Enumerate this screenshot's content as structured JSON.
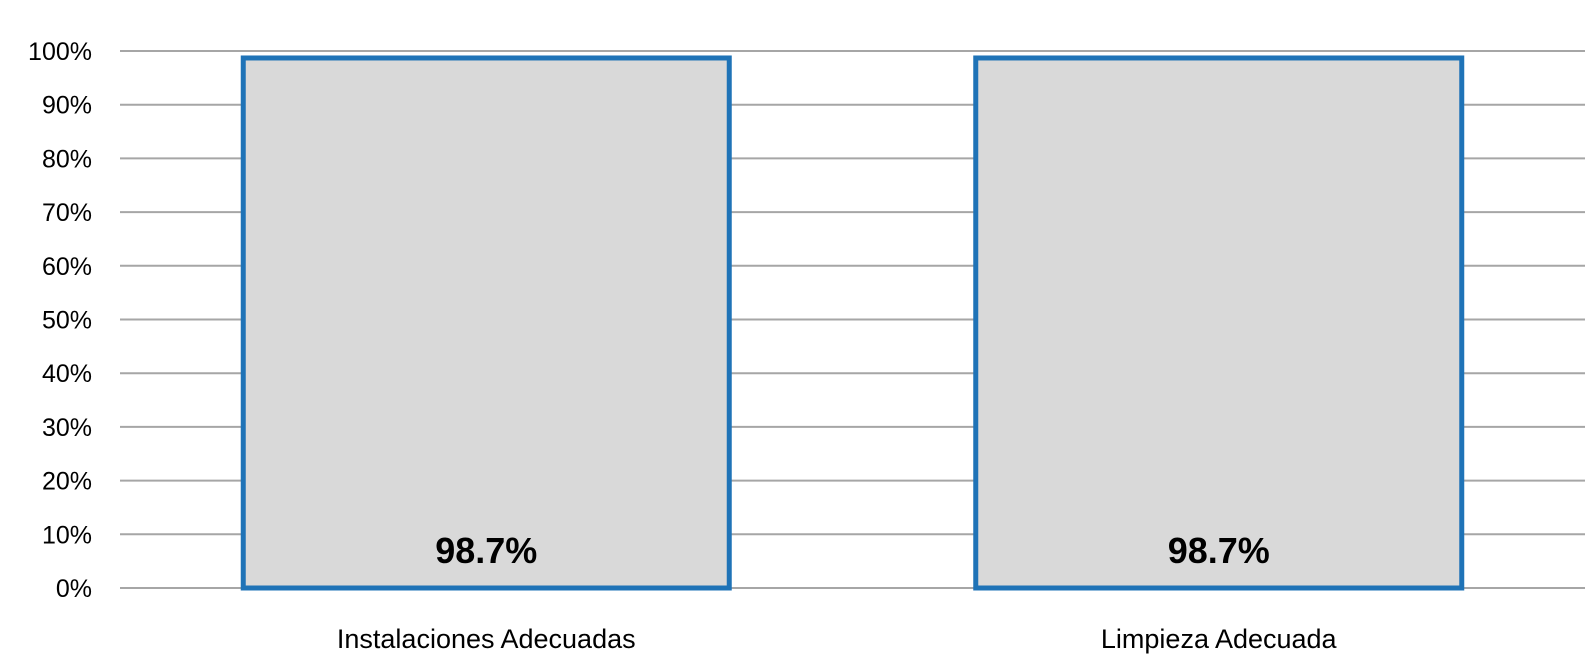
{
  "chart_data": {
    "type": "bar",
    "categories": [
      "Instalaciones Adecuadas",
      "Limpieza Adecuada"
    ],
    "values": [
      98.7,
      98.7
    ],
    "data_labels": [
      "98.7%",
      "98.7%"
    ],
    "ylim": [
      0,
      100
    ],
    "y_ticks": [
      0,
      10,
      20,
      30,
      40,
      50,
      60,
      70,
      80,
      90,
      100
    ],
    "y_tick_labels": [
      "0%",
      "10%",
      "20%",
      "30%",
      "40%",
      "50%",
      "60%",
      "70%",
      "80%",
      "90%",
      "100%"
    ],
    "grid": true,
    "legend": "none",
    "colors": {
      "bar_fill": "#d9d9d9",
      "bar_stroke": "#1f73b7",
      "grid": "#a6a6a6",
      "text": "#000000"
    }
  }
}
